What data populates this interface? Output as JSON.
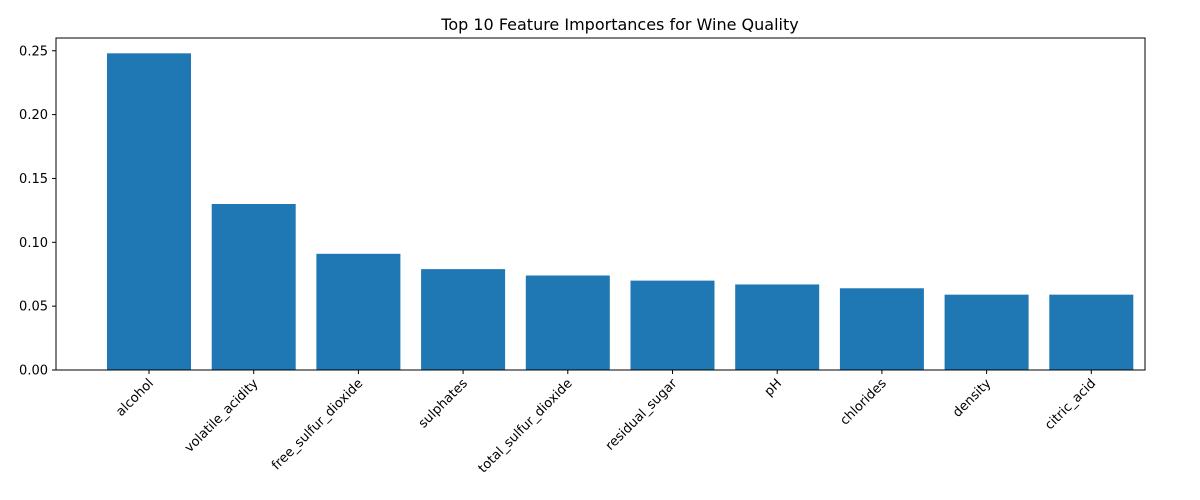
{
  "chart_data": {
    "type": "bar",
    "title": "Top 10 Feature Importances for Wine Quality",
    "xlabel": "",
    "ylabel": "",
    "categories": [
      "alcohol",
      "volatile_acidity",
      "free_sulfur_dioxide",
      "sulphates",
      "total_sulfur_dioxide",
      "residual_sugar",
      "pH",
      "chlorides",
      "density",
      "citric_acid"
    ],
    "values": [
      0.248,
      0.13,
      0.091,
      0.079,
      0.074,
      0.07,
      0.067,
      0.064,
      0.059,
      0.059
    ],
    "ylim": [
      0,
      0.26
    ],
    "yticks": [
      0.0,
      0.05,
      0.1,
      0.15,
      0.2,
      0.25
    ],
    "ytick_labels": [
      "0.00",
      "0.05",
      "0.10",
      "0.15",
      "0.20",
      "0.25"
    ],
    "bar_color": "#1f77b4",
    "grid": false,
    "legend": "none"
  }
}
